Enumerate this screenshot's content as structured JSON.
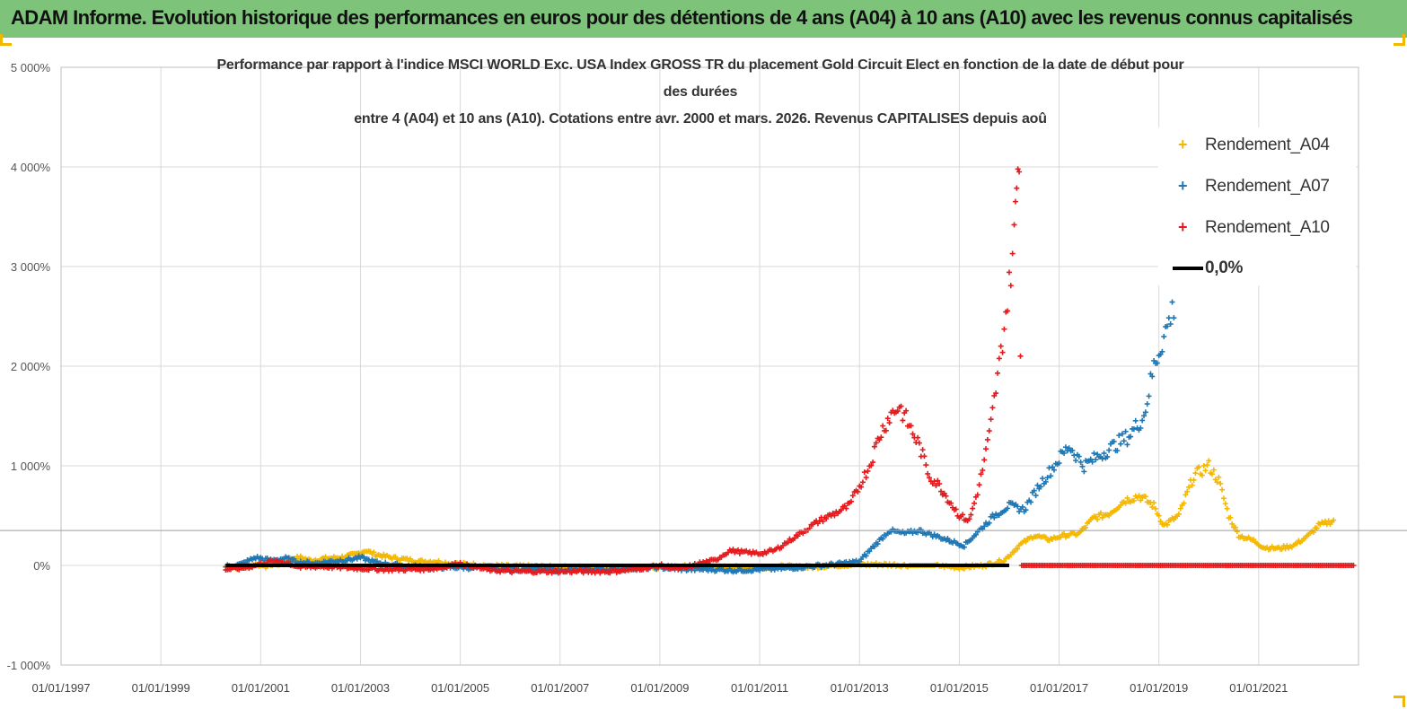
{
  "banner": {
    "title": "ADAM Informe. Evolution historique des performances en euros pour des détentions de 4 ans (A04) à 10 ans (A10) avec les revenus connus capitalisés"
  },
  "colors": {
    "banner": "#7dc37a",
    "A04": "#f5b800",
    "A07": "#1f77b4",
    "A10": "#e41a1c",
    "zero": "#000000",
    "grid": "#d9d9d9"
  },
  "chart_data": {
    "type": "scatter",
    "title_lines": [
      "Performance par rapport à l'indice MSCI WORLD Exc. USA Index GROSS TR  du placement Gold Circuit Elect  en fonction de la date de début pour",
      "des durées",
      "entre 4 (A04) et 10 ans (A10). Cotations entre avr. 2000 et mars. 2026. Revenus CAPITALISES depuis aoû"
    ],
    "xlabel": "",
    "ylabel": "",
    "xlim": [
      1997.0,
      2023.0
    ],
    "ylim": [
      -1000,
      5000
    ],
    "y_ticks": [
      {
        "value": -1000,
        "label": "-1 000%"
      },
      {
        "value": 0,
        "label": "0%"
      },
      {
        "value": 1000,
        "label": "1 000%"
      },
      {
        "value": 2000,
        "label": "2 000%"
      },
      {
        "value": 3000,
        "label": "3 000%"
      },
      {
        "value": 4000,
        "label": "4 000%"
      },
      {
        "value": 5000,
        "label": "5 000%"
      }
    ],
    "x_ticks": [
      {
        "value": 1997,
        "label": "01/01/1997"
      },
      {
        "value": 1999,
        "label": "01/01/1999"
      },
      {
        "value": 2001,
        "label": "01/01/2001"
      },
      {
        "value": 2003,
        "label": "01/01/2003"
      },
      {
        "value": 2005,
        "label": "01/01/2005"
      },
      {
        "value": 2007,
        "label": "01/01/2007"
      },
      {
        "value": 2009,
        "label": "01/01/2009"
      },
      {
        "value": 2011,
        "label": "01/01/2011"
      },
      {
        "value": 2013,
        "label": "01/01/2013"
      },
      {
        "value": 2015,
        "label": "01/01/2015"
      },
      {
        "value": 2017,
        "label": "01/01/2017"
      },
      {
        "value": 2019,
        "label": "01/01/2019"
      },
      {
        "value": 2021,
        "label": "01/01/2021"
      }
    ],
    "grid": true,
    "legend_position": "top-right",
    "series": [
      {
        "name": "Rendement_A04",
        "color": "#f5b800",
        "points": [
          [
            2000.3,
            -10
          ],
          [
            2000.6,
            -20
          ],
          [
            2000.9,
            10
          ],
          [
            2001.1,
            -10
          ],
          [
            2001.4,
            20
          ],
          [
            2001.6,
            60
          ],
          [
            2001.8,
            80
          ],
          [
            2002.0,
            50
          ],
          [
            2002.3,
            70
          ],
          [
            2002.6,
            80
          ],
          [
            2002.9,
            110
          ],
          [
            2003.1,
            150
          ],
          [
            2003.3,
            110
          ],
          [
            2003.6,
            80
          ],
          [
            2003.9,
            60
          ],
          [
            2004.2,
            40
          ],
          [
            2004.5,
            40
          ],
          [
            2004.8,
            20
          ],
          [
            2005.2,
            10
          ],
          [
            2005.6,
            0
          ],
          [
            2006.0,
            -10
          ],
          [
            2006.5,
            -10
          ],
          [
            2007.0,
            -20
          ],
          [
            2007.5,
            -20
          ],
          [
            2008.0,
            -30
          ],
          [
            2008.5,
            -30
          ],
          [
            2009.0,
            -20
          ],
          [
            2009.5,
            -10
          ],
          [
            2010.0,
            -20
          ],
          [
            2010.5,
            -20
          ],
          [
            2011.0,
            -20
          ],
          [
            2011.5,
            -10
          ],
          [
            2012.0,
            -20
          ],
          [
            2012.5,
            0
          ],
          [
            2013.0,
            10
          ],
          [
            2013.5,
            10
          ],
          [
            2014.0,
            0
          ],
          [
            2014.5,
            0
          ],
          [
            2015.0,
            -20
          ],
          [
            2015.5,
            0
          ],
          [
            2015.9,
            50
          ],
          [
            2016.2,
            200
          ],
          [
            2016.5,
            300
          ],
          [
            2016.8,
            260
          ],
          [
            2017.1,
            300
          ],
          [
            2017.4,
            320
          ],
          [
            2017.7,
            480
          ],
          [
            2018.0,
            520
          ],
          [
            2018.3,
            650
          ],
          [
            2018.6,
            700
          ],
          [
            2018.9,
            600
          ],
          [
            2019.1,
            400
          ],
          [
            2019.4,
            500
          ],
          [
            2019.7,
            900
          ],
          [
            2020.0,
            1000
          ],
          [
            2020.2,
            850
          ],
          [
            2020.4,
            500
          ],
          [
            2020.6,
            300
          ],
          [
            2020.9,
            250
          ],
          [
            2021.1,
            180
          ],
          [
            2021.4,
            170
          ],
          [
            2021.7,
            200
          ],
          [
            2022.0,
            300
          ],
          [
            2022.2,
            400
          ],
          [
            2022.5,
            450
          ]
        ]
      },
      {
        "name": "Rendement_A07",
        "color": "#1f77b4",
        "points": [
          [
            2000.3,
            -10
          ],
          [
            2000.6,
            10
          ],
          [
            2000.9,
            80
          ],
          [
            2001.2,
            50
          ],
          [
            2001.5,
            70
          ],
          [
            2001.8,
            30
          ],
          [
            2002.1,
            20
          ],
          [
            2002.4,
            40
          ],
          [
            2002.8,
            60
          ],
          [
            2003.0,
            80
          ],
          [
            2003.3,
            30
          ],
          [
            2003.6,
            10
          ],
          [
            2004.0,
            -10
          ],
          [
            2004.5,
            -20
          ],
          [
            2005.0,
            -20
          ],
          [
            2005.5,
            -30
          ],
          [
            2006.0,
            -40
          ],
          [
            2006.5,
            -40
          ],
          [
            2007.0,
            -50
          ],
          [
            2007.5,
            -40
          ],
          [
            2008.0,
            -40
          ],
          [
            2008.5,
            -30
          ],
          [
            2009.0,
            -20
          ],
          [
            2009.5,
            -40
          ],
          [
            2010.0,
            -40
          ],
          [
            2010.5,
            -50
          ],
          [
            2011.0,
            -40
          ],
          [
            2011.5,
            -30
          ],
          [
            2012.0,
            -10
          ],
          [
            2012.5,
            10
          ],
          [
            2013.0,
            40
          ],
          [
            2013.3,
            200
          ],
          [
            2013.6,
            350
          ],
          [
            2013.9,
            320
          ],
          [
            2014.2,
            350
          ],
          [
            2014.5,
            300
          ],
          [
            2014.8,
            250
          ],
          [
            2015.1,
            200
          ],
          [
            2015.4,
            350
          ],
          [
            2015.7,
            500
          ],
          [
            2016.0,
            600
          ],
          [
            2016.3,
            560
          ],
          [
            2016.6,
            800
          ],
          [
            2016.9,
            1000
          ],
          [
            2017.2,
            1200
          ],
          [
            2017.5,
            1000
          ],
          [
            2017.8,
            1100
          ],
          [
            2018.1,
            1200
          ],
          [
            2018.4,
            1300
          ],
          [
            2018.7,
            1500
          ],
          [
            2018.9,
            2000
          ],
          [
            2019.1,
            2300
          ],
          [
            2019.3,
            2600
          ]
        ]
      },
      {
        "name": "Rendement_A10",
        "color": "#e41a1c",
        "points": [
          [
            2000.3,
            -40
          ],
          [
            2000.6,
            -30
          ],
          [
            2000.9,
            0
          ],
          [
            2001.2,
            40
          ],
          [
            2001.5,
            30
          ],
          [
            2001.8,
            -20
          ],
          [
            2002.2,
            -10
          ],
          [
            2002.6,
            -20
          ],
          [
            2003.0,
            -30
          ],
          [
            2003.5,
            -40
          ],
          [
            2004.0,
            -40
          ],
          [
            2004.5,
            -30
          ],
          [
            2005.0,
            20
          ],
          [
            2005.5,
            -40
          ],
          [
            2006.0,
            -60
          ],
          [
            2006.5,
            -60
          ],
          [
            2007.0,
            -60
          ],
          [
            2007.5,
            -60
          ],
          [
            2008.0,
            -60
          ],
          [
            2008.5,
            -40
          ],
          [
            2009.0,
            0
          ],
          [
            2009.4,
            -40
          ],
          [
            2009.8,
            20
          ],
          [
            2010.1,
            50
          ],
          [
            2010.4,
            150
          ],
          [
            2010.7,
            130
          ],
          [
            2011.0,
            120
          ],
          [
            2011.3,
            150
          ],
          [
            2011.6,
            250
          ],
          [
            2011.9,
            350
          ],
          [
            2012.2,
            450
          ],
          [
            2012.5,
            520
          ],
          [
            2012.8,
            600
          ],
          [
            2013.0,
            800
          ],
          [
            2013.2,
            1000
          ],
          [
            2013.4,
            1300
          ],
          [
            2013.6,
            1500
          ],
          [
            2013.8,
            1600
          ],
          [
            2014.0,
            1400
          ],
          [
            2014.2,
            1200
          ],
          [
            2014.4,
            900
          ],
          [
            2014.6,
            800
          ],
          [
            2014.8,
            650
          ],
          [
            2015.0,
            500
          ],
          [
            2015.2,
            450
          ],
          [
            2015.4,
            800
          ],
          [
            2015.6,
            1300
          ],
          [
            2015.8,
            2000
          ],
          [
            2016.0,
            2800
          ],
          [
            2016.1,
            3300
          ],
          [
            2016.15,
            3800
          ],
          [
            2016.2,
            4200
          ],
          [
            2016.25,
            0
          ],
          [
            2017.0,
            0
          ],
          [
            2018.0,
            0
          ],
          [
            2019.0,
            0
          ],
          [
            2020.0,
            0
          ],
          [
            2021.0,
            0
          ],
          [
            2022.0,
            0
          ],
          [
            2022.9,
            0
          ]
        ]
      },
      {
        "name": "0,0%",
        "color": "#000000",
        "type": "line",
        "points": [
          [
            2000.3,
            0
          ],
          [
            2016.0,
            0
          ]
        ]
      }
    ]
  }
}
